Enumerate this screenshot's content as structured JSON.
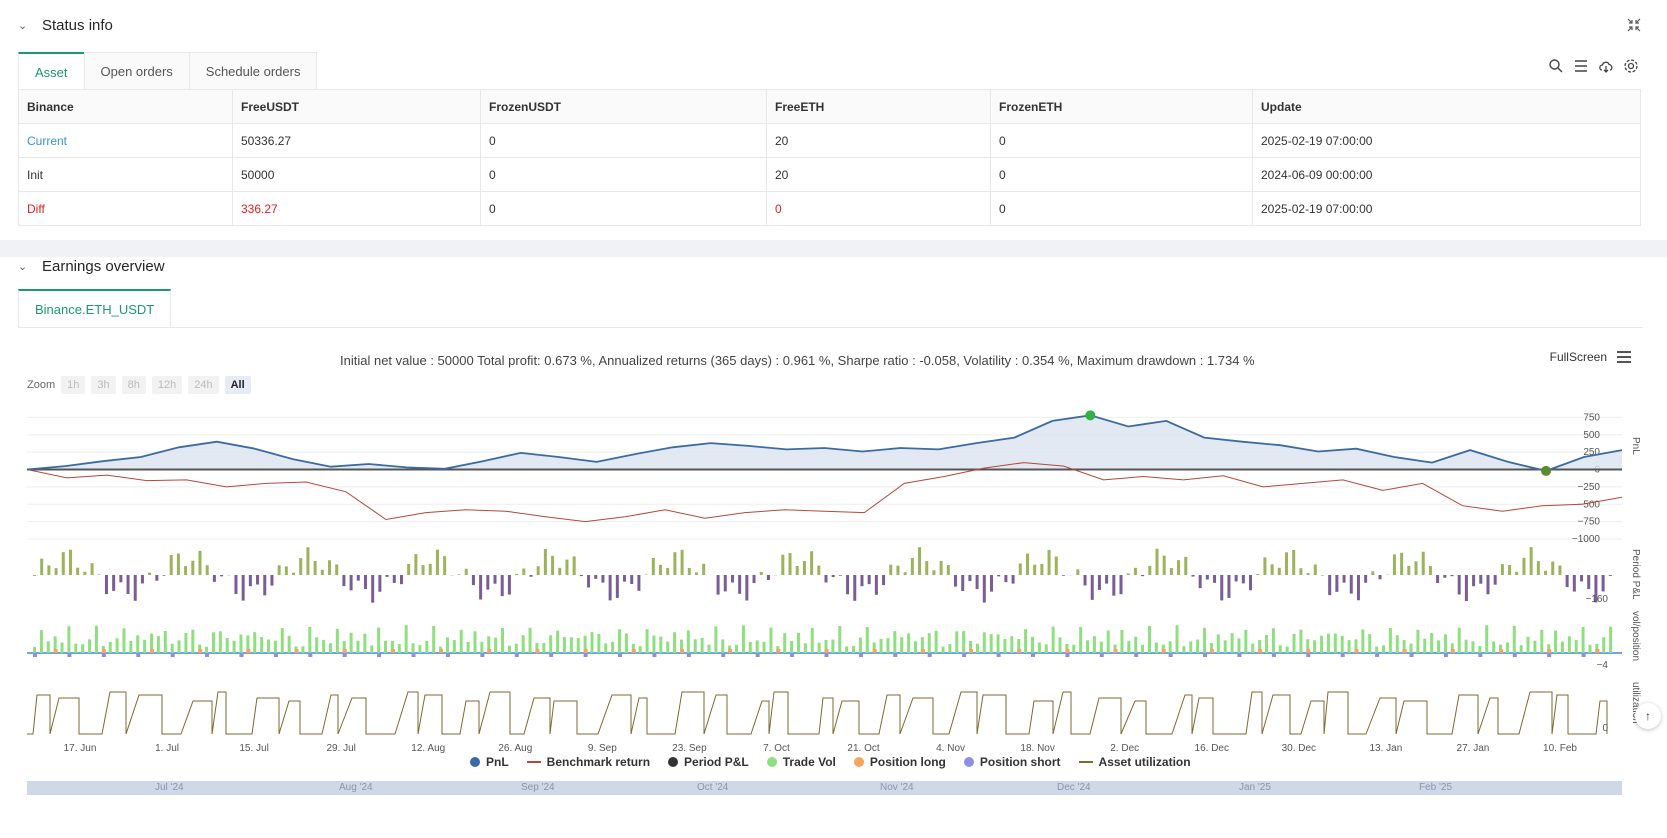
{
  "status": {
    "title": "Status info",
    "tabs": [
      "Asset",
      "Open orders",
      "Schedule orders"
    ],
    "table": {
      "headers": [
        "Binance",
        "FreeUSDT",
        "FrozenUSDT",
        "FreeETH",
        "FrozenETH",
        "Update"
      ],
      "rows": [
        [
          "Current",
          "50336.27",
          "0",
          "20",
          "0",
          "2025-02-19 07:00:00"
        ],
        [
          "Init",
          "50000",
          "0",
          "20",
          "0",
          "2024-06-09 00:00:00"
        ],
        [
          "Diff",
          "336.27",
          "0",
          "0",
          "0",
          "2025-02-19 07:00:00"
        ]
      ]
    }
  },
  "earnings": {
    "title": "Earnings overview",
    "tab": "Binance.ETH_USDT",
    "summary": "Initial net value : 50000 Total profit: 0.673 %, Annualized returns (365 days) : 0.961 %, Sharpe ratio : -0.058, Volatility : 0.354 %, Maximum drawdown : 1.734 %",
    "fullscreen": "FullScreen",
    "zoom_label": "Zoom",
    "zoom_buttons": [
      "1h",
      "3h",
      "8h",
      "12h",
      "24h",
      "All"
    ],
    "legend": [
      "PnL",
      "Benchmark return",
      "Period P&L",
      "Trade Vol",
      "Position long",
      "Position short",
      "Asset utilization"
    ],
    "navigator_labels": [
      "Jul '24",
      "Aug '24",
      "Sep '24",
      "Oct '24",
      "Nov '24",
      "Dec '24",
      "Jan '25",
      "Feb '25"
    ]
  },
  "colors": {
    "pnl": "#3c6aa3",
    "benchmark": "#b5473a",
    "period_pos": "#9bb35a",
    "period_neg": "#7a5c96",
    "trade_vol": "#8ee07e",
    "pos_long": "#f5a55c",
    "pos_short": "#8c8ee8",
    "utilization": "#7d6a30",
    "accent": "#1a9a6b"
  },
  "chart_data": {
    "type": "line",
    "x_ticks": [
      "17. Jun",
      "1. Jul",
      "15. Jul",
      "29. Jul",
      "12. Aug",
      "26. Aug",
      "9. Sep",
      "23. Sep",
      "7. Oct",
      "21. Oct",
      "4. Nov",
      "18. Nov",
      "2. Dec",
      "16. Dec",
      "30. Dec",
      "13. Jan",
      "27. Jan",
      "10. Feb"
    ],
    "pnl_y_ticks": [
      "750",
      "500",
      "250",
      "0",
      "-250",
      "-500",
      "-750",
      "-1000"
    ],
    "pnl_ylim": [
      -1000,
      900
    ],
    "pnl_axis_label": "PnL",
    "period_axis_label": "Period P&L",
    "period_tick": "-160",
    "vol_axis_label": "vol/position",
    "vol_tick": "-4",
    "util_axis_label": "utilization",
    "util_tick": "0",
    "series": [
      {
        "name": "PnL",
        "values": [
          0,
          50,
          120,
          180,
          320,
          400,
          300,
          150,
          40,
          80,
          30,
          10,
          120,
          240,
          180,
          110,
          220,
          320,
          380,
          340,
          290,
          310,
          260,
          310,
          290,
          380,
          460,
          700,
          780,
          620,
          700,
          460,
          400,
          350,
          260,
          300,
          180,
          100,
          280,
          110,
          -20,
          180,
          280
        ]
      },
      {
        "name": "Benchmark return",
        "values": [
          0,
          -120,
          -80,
          -160,
          -150,
          -250,
          -200,
          -180,
          -320,
          -720,
          -620,
          -580,
          -600,
          -680,
          -750,
          -680,
          -580,
          -700,
          -620,
          -580,
          -600,
          -620,
          -200,
          -100,
          20,
          100,
          50,
          -150,
          -100,
          -150,
          -90,
          -250,
          -200,
          -150,
          -300,
          -200,
          -520,
          -600,
          -520,
          -500,
          -400
        ]
      }
    ]
  }
}
